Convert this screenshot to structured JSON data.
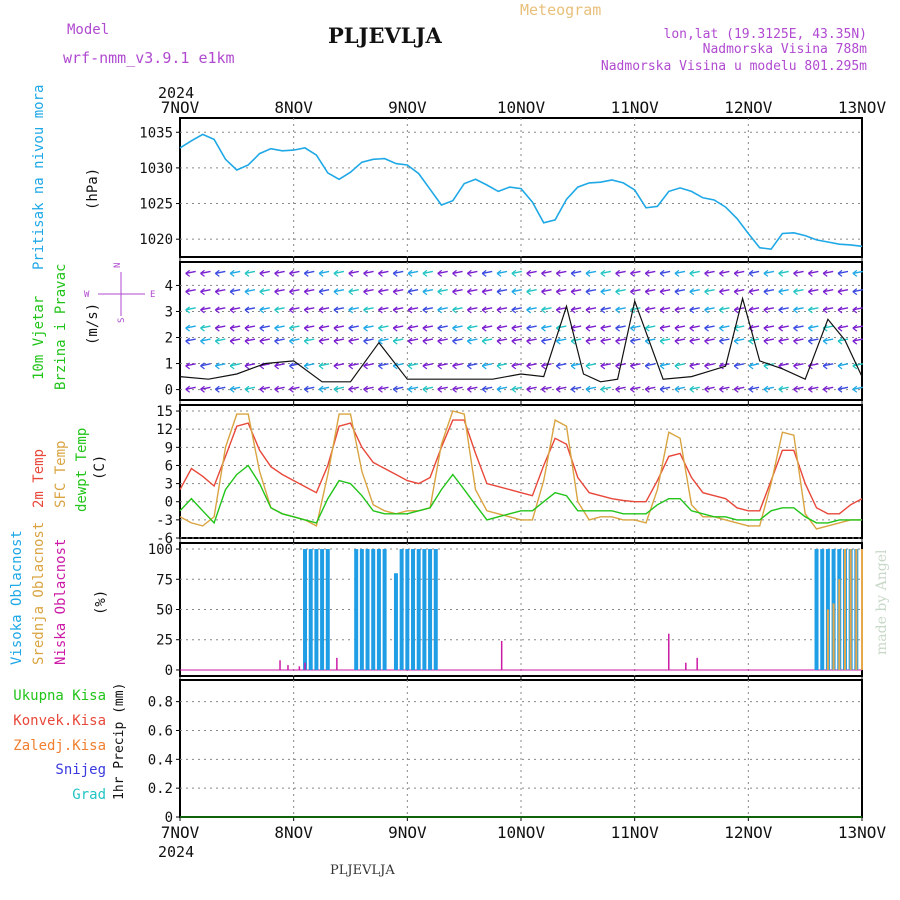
{
  "header": {
    "model_label": "Model",
    "model_name": "wrf-nmm_v3.9.1  e1km",
    "station_title": "PLJEVLJA",
    "meteogram_label": "Meteogram",
    "coords": "lon,lat (19.3125E, 43.35N)",
    "altitude": "Nadmorska Visina 788m",
    "model_altitude": "Nadmorska Visina u modelu 801.295m",
    "footer_station": "PLJEVLJA",
    "credit": "made by Angel"
  },
  "time_axis": {
    "year": "2024",
    "ticks": [
      "7NOV",
      "8NOV",
      "9NOV",
      "10NOV",
      "11NOV",
      "12NOV",
      "13NOV"
    ]
  },
  "colors": {
    "pressure": "#1fa8e6",
    "t2m": "#e8483a",
    "sfc": "#d9a441",
    "dewpt": "#22c41a",
    "high_cloud": "#1f9ee6",
    "mid_cloud": "#e6a84a",
    "low_cloud": "#cc1aa6",
    "wind_speed": "#111111",
    "purple_label": "#b04ad0",
    "grid": "#888888"
  },
  "panels": {
    "pressure": {
      "label1": "Pritisak na nivou mora",
      "label2": "(hPa)"
    },
    "wind": {
      "label1": "10m Vjetar",
      "label2": "Brzina i Pravac",
      "label3": "(m/s)",
      "compass_n": "N",
      "compass_w": "W",
      "compass_e": "E",
      "compass_s": "S"
    },
    "temp": {
      "label1": "2m Temp",
      "label2": "SFC Temp",
      "label3": "dewpt Temp",
      "label4": "(C)"
    },
    "cloud": {
      "label1": "Visoka Oblacnost",
      "label2": "Srednja Oblacnost",
      "label3": "Niska Oblacnost",
      "label4": "(%)"
    },
    "precip": {
      "label_ukupna": "Ukupna  Kisa",
      "label_konvek": "Konvek.Kisa",
      "label_zaledj": "Zaledj.Kisa",
      "label_snijeg": "Snijeg",
      "label_grad": "Grad",
      "axis": "1hr Precip (mm)"
    }
  },
  "chart_data": [
    {
      "type": "line",
      "title": "Pritisak na nivou mora",
      "ylabel": "(hPa)",
      "ylim": [
        1017.5,
        1037
      ],
      "yticks": [
        1020,
        1025,
        1030,
        1035
      ],
      "x": [
        0,
        0.1,
        0.2,
        0.3,
        0.4,
        0.5,
        0.6,
        0.7,
        0.8,
        0.9,
        1.0,
        1.1,
        1.2,
        1.3,
        1.4,
        1.5,
        1.6,
        1.7,
        1.8,
        1.9,
        2.0,
        2.1,
        2.2,
        2.3,
        2.4,
        2.5,
        2.6,
        2.7,
        2.8,
        2.9,
        3.0,
        3.1,
        3.2,
        3.3,
        3.4,
        3.5,
        3.6,
        3.7,
        3.8,
        3.9,
        4.0,
        4.1,
        4.2,
        4.3,
        4.4,
        4.5,
        4.6,
        4.7,
        4.8,
        4.9,
        5.0,
        5.1,
        5.2,
        5.3,
        5.4,
        5.5,
        5.6,
        5.7,
        5.8,
        5.9,
        6.0
      ],
      "series": [
        {
          "values": [
            1032.8,
            1033.8,
            1034.7,
            1034.0,
            1031.2,
            1029.7,
            1030.4,
            1032.0,
            1032.7,
            1032.4,
            1032.5,
            1032.8,
            1031.8,
            1029.3,
            1028.4,
            1029.4,
            1030.8,
            1031.2,
            1031.3,
            1030.6,
            1030.4,
            1029.2,
            1027.0,
            1024.8,
            1025.4,
            1027.8,
            1028.4,
            1027.6,
            1026.7,
            1027.3,
            1027.1,
            1025.2,
            1022.3,
            1022.7,
            1025.6,
            1027.3,
            1027.9,
            1028.0,
            1028.3,
            1027.9,
            1026.9,
            1024.4,
            1024.6,
            1026.7,
            1027.2,
            1026.7,
            1025.8,
            1025.5,
            1024.5,
            1022.9,
            1020.8,
            1018.8,
            1018.6,
            1020.8,
            1020.9,
            1020.5,
            1019.9,
            1019.6,
            1019.3,
            1019.2,
            1019.0
          ]
        }
      ]
    },
    {
      "type": "line",
      "title": "10m Vjetar Brzina i Pravac",
      "ylabel": "(m/s)",
      "ylim": [
        -0.4,
        4.9
      ],
      "yticks": [
        0,
        1,
        2,
        3,
        4
      ],
      "x": [
        0,
        0.25,
        0.5,
        0.75,
        1.0,
        1.25,
        1.5,
        1.75,
        2.0,
        2.25,
        2.5,
        2.75,
        3.0,
        3.2,
        3.4,
        3.55,
        3.7,
        3.85,
        4.0,
        4.25,
        4.5,
        4.65,
        4.8,
        4.95,
        5.1,
        5.3,
        5.5,
        5.7,
        5.85,
        6.0
      ],
      "series": [
        {
          "name": "speed",
          "values": [
            0.5,
            0.4,
            0.6,
            1.0,
            1.1,
            0.3,
            0.3,
            1.8,
            0.4,
            0.4,
            0.4,
            0.4,
            0.6,
            0.5,
            3.2,
            0.6,
            0.3,
            0.4,
            3.4,
            0.4,
            0.5,
            0.7,
            0.9,
            3.5,
            1.1,
            0.8,
            0.4,
            2.7,
            1.9,
            0.5
          ]
        }
      ]
    },
    {
      "type": "line",
      "title": "Temp",
      "ylabel": "(C)",
      "ylim": [
        -6,
        16
      ],
      "yticks": [
        -6,
        -3,
        0,
        3,
        6,
        9,
        12,
        15
      ],
      "x": [
        0,
        0.1,
        0.2,
        0.3,
        0.4,
        0.5,
        0.6,
        0.7,
        0.8,
        0.9,
        1.0,
        1.1,
        1.2,
        1.3,
        1.4,
        1.5,
        1.6,
        1.7,
        1.8,
        1.9,
        2.0,
        2.1,
        2.2,
        2.3,
        2.4,
        2.5,
        2.6,
        2.7,
        2.8,
        2.9,
        3.0,
        3.1,
        3.2,
        3.3,
        3.4,
        3.5,
        3.6,
        3.7,
        3.8,
        3.9,
        4.0,
        4.1,
        4.2,
        4.3,
        4.4,
        4.5,
        4.6,
        4.7,
        4.8,
        4.9,
        5.0,
        5.1,
        5.2,
        5.3,
        5.4,
        5.5,
        5.6,
        5.7,
        5.8,
        5.9,
        6.0
      ],
      "series": [
        {
          "name": "2m Temp",
          "values": [
            2.0,
            5.5,
            4.2,
            2.6,
            7.5,
            12.5,
            13.0,
            8.5,
            5.8,
            4.5,
            3.5,
            2.5,
            1.5,
            6.0,
            12.5,
            13.0,
            9.0,
            6.5,
            5.5,
            4.5,
            3.5,
            3.0,
            4.0,
            9.0,
            13.5,
            13.5,
            8.0,
            3.0,
            2.5,
            2.0,
            1.5,
            1.0,
            6.0,
            10.5,
            9.5,
            4.0,
            1.5,
            1.0,
            0.5,
            0.2,
            0.0,
            0.0,
            3.5,
            7.5,
            8.0,
            4.0,
            1.5,
            1.0,
            0.5,
            -1.0,
            -1.5,
            -1.5,
            3.5,
            8.5,
            8.5,
            3.0,
            -1.0,
            -2.0,
            -2.0,
            -0.5,
            0.5
          ]
        },
        {
          "name": "SFC Temp",
          "values": [
            -2.5,
            -3.5,
            -4.0,
            -2.5,
            9.0,
            14.5,
            14.5,
            5.0,
            -1.0,
            -2.0,
            -2.5,
            -3.0,
            -4.0,
            4.5,
            14.5,
            14.5,
            5.0,
            -0.5,
            -1.5,
            -2.0,
            -1.5,
            -1.5,
            -1.0,
            9.5,
            15.0,
            14.5,
            2.0,
            -1.5,
            -2.0,
            -2.5,
            -3.0,
            -3.0,
            3.5,
            13.5,
            12.5,
            0.0,
            -3.0,
            -2.5,
            -2.5,
            -3.0,
            -3.0,
            -3.5,
            2.0,
            11.5,
            10.5,
            -0.5,
            -2.5,
            -2.5,
            -3.0,
            -3.5,
            -4.0,
            -4.0,
            3.0,
            11.5,
            11.0,
            -2.0,
            -4.5,
            -4.0,
            -3.5,
            -3.0,
            -3.0
          ]
        },
        {
          "name": "dewpt Temp",
          "values": [
            -1.5,
            0.5,
            -1.5,
            -3.5,
            2.0,
            4.5,
            6.0,
            3.0,
            -1.0,
            -2.0,
            -2.5,
            -3.0,
            -3.5,
            0.5,
            3.5,
            3.0,
            1.0,
            -1.5,
            -2.0,
            -2.0,
            -2.0,
            -1.5,
            -1.0,
            2.0,
            4.5,
            2.0,
            -0.5,
            -3.0,
            -2.5,
            -2.0,
            -1.5,
            -1.5,
            0.0,
            1.5,
            1.0,
            -1.5,
            -1.5,
            -1.5,
            -1.5,
            -2.0,
            -2.0,
            -2.0,
            -0.5,
            0.5,
            0.5,
            -1.5,
            -2.0,
            -2.5,
            -2.5,
            -3.0,
            -3.0,
            -3.0,
            -1.5,
            -1.0,
            -1.0,
            -2.5,
            -3.5,
            -3.5,
            -3.0,
            -3.0,
            -3.0
          ]
        }
      ]
    },
    {
      "type": "bar",
      "title": "Oblacnost",
      "ylabel": "(%)",
      "ylim": [
        -5,
        105
      ],
      "yticks": [
        0,
        25,
        50,
        75,
        100
      ],
      "series": [
        {
          "name": "Visoka Oblacnost",
          "x": [
            1.1,
            1.15,
            1.2,
            1.25,
            1.3,
            1.55,
            1.6,
            1.65,
            1.7,
            1.75,
            1.8,
            1.9,
            1.95,
            2.0,
            2.05,
            2.1,
            2.15,
            2.2,
            2.25,
            5.6,
            5.65,
            5.7,
            5.75,
            5.8,
            5.85,
            5.9,
            5.95
          ],
          "values": [
            100,
            100,
            100,
            100,
            100,
            100,
            100,
            100,
            100,
            100,
            100,
            80,
            100,
            100,
            100,
            100,
            100,
            100,
            100,
            100,
            100,
            100,
            100,
            100,
            100,
            100,
            100
          ]
        },
        {
          "name": "Srednja Oblacnost",
          "x": [
            5.7,
            5.75,
            5.8,
            5.85,
            5.9,
            5.95,
            6.0
          ],
          "values": [
            50,
            55,
            75,
            100,
            100,
            100,
            100
          ]
        },
        {
          "name": "Niska Oblacnost",
          "x": [
            0.88,
            0.95,
            1.05,
            1.1,
            1.38,
            2.83,
            4.3,
            4.45,
            4.55
          ],
          "values": [
            8,
            4,
            3,
            6,
            10,
            24,
            30,
            6,
            10
          ]
        }
      ]
    },
    {
      "type": "bar",
      "title": "1hr Precip",
      "ylabel": "1hr Precip (mm)",
      "ylim": [
        0,
        0.95
      ],
      "yticks": [
        0,
        0.2,
        0.4,
        0.6,
        0.8
      ],
      "series": [
        {
          "name": "Ukupna Kisa",
          "values": []
        }
      ]
    }
  ]
}
